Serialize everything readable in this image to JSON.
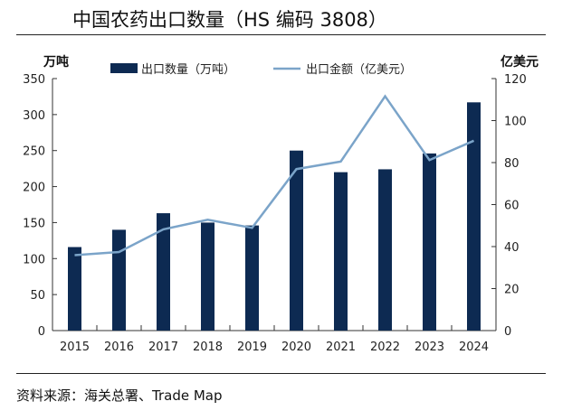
{
  "title": "中国农药出口数量（HS 编码 3808）",
  "source": "资料来源：海关总署、Trade Map",
  "colors": {
    "bar": "#0d2a52",
    "line": "#7ba4c9",
    "axis": "#333333"
  },
  "chart_data": {
    "type": "bar+line",
    "title": "中国农药出口数量（HS 编码 3808）",
    "categories": [
      "2015",
      "2016",
      "2017",
      "2018",
      "2019",
      "2020",
      "2021",
      "2022",
      "2023",
      "2024"
    ],
    "left_axis": {
      "label": "万吨",
      "range": [
        0,
        350
      ],
      "ticks": [
        "0",
        "50",
        "100",
        "150",
        "200",
        "250",
        "300",
        "350"
      ]
    },
    "right_axis": {
      "label": "亿美元",
      "range": [
        0,
        120
      ],
      "ticks": [
        "0",
        "20",
        "40",
        "60",
        "80",
        "100",
        "120"
      ]
    },
    "series": [
      {
        "name": "出口数量（万吨）",
        "type": "bar",
        "axis": "left",
        "values": [
          116,
          140,
          163,
          150,
          146,
          250,
          220,
          224,
          246,
          317
        ]
      },
      {
        "name": "出口金额（亿美元）",
        "type": "line",
        "axis": "right",
        "values": [
          35.9,
          37.4,
          48.2,
          52.8,
          48.9,
          76.9,
          80.5,
          111.6,
          81.2,
          90.4
        ]
      }
    ],
    "legend": "top-center",
    "grid": false
  }
}
